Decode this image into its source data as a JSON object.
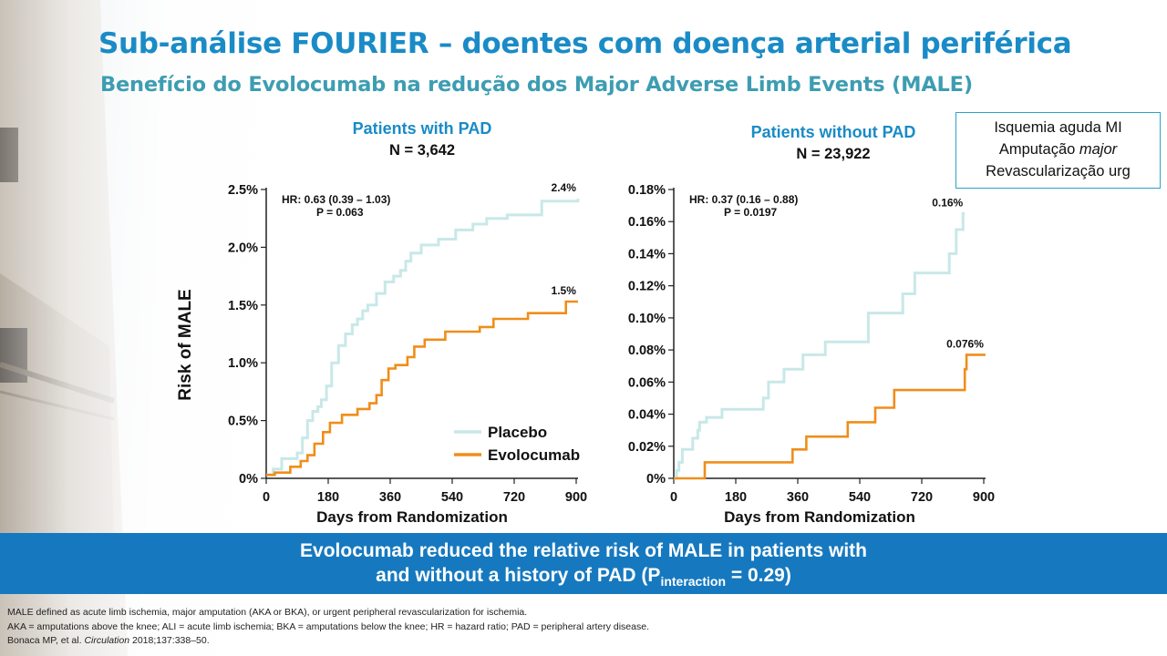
{
  "title": "Sub-análise FOURIER – doentes com doença arterial periférica",
  "subtitle": "Benefício do Evolocumab na redução dos Major Adverse Limb Events (MALE)",
  "box": {
    "line1": "Isquemia aguda MI",
    "line2_pre": "Amputação ",
    "line2_it": "major",
    "line3": "Revascularização urg"
  },
  "colors": {
    "placebo": "#c8e8e8",
    "evolocumab": "#ef8e1a",
    "title": "#1a8bc6",
    "banner": "#1679bf"
  },
  "banner": {
    "line1": "Evolocumab reduced the relative risk of MALE in patients with",
    "line2_pre": "and without a history of PAD (P",
    "line2_sub": "interaction",
    "line2_post": " = 0.29)"
  },
  "footnotes": {
    "line1": "MALE defined as acute limb ischemia, major amputation (AKA or BKA), or urgent peripheral revascularization for ischemia.",
    "line2": "AKA = amputations above the knee; ALI = acute limb ischemia; BKA = amputations below the knee; HR = hazard ratio; PAD = peripheral artery disease.",
    "line3_pre": "Bonaca MP, et al. ",
    "line3_it": "Circulation",
    "line3_post": " 2018;137:338–50."
  },
  "chart_data": [
    {
      "type": "line",
      "title": "Patients with PAD",
      "subtitle": "N = 3,642",
      "ylabel": "Risk of MALE",
      "xlabel": "Days from Randomization",
      "xlim": [
        0,
        900
      ],
      "ylim": [
        0,
        2.5
      ],
      "x_ticks": [
        "0",
        "180",
        "360",
        "540",
        "720",
        "900"
      ],
      "y_ticks": [
        "0%",
        "0.5%",
        "1.0%",
        "1.5%",
        "2.0%",
        "2.5%"
      ],
      "hr_line1": "HR: 0.63 (0.39 – 1.03)",
      "hr_line2": "P = 0.063",
      "legend": [
        "Placebo",
        "Evolocumab"
      ],
      "legend_position": "bottom-right",
      "end_labels": {
        "Placebo": "2.4%",
        "Evolocumab": "1.5%"
      },
      "series": [
        {
          "name": "Placebo",
          "points": [
            [
              0,
              0.03
            ],
            [
              20,
              0.08
            ],
            [
              45,
              0.17
            ],
            [
              90,
              0.22
            ],
            [
              105,
              0.35
            ],
            [
              120,
              0.5
            ],
            [
              135,
              0.58
            ],
            [
              150,
              0.62
            ],
            [
              160,
              0.68
            ],
            [
              175,
              0.8
            ],
            [
              190,
              1.0
            ],
            [
              210,
              1.15
            ],
            [
              230,
              1.25
            ],
            [
              250,
              1.33
            ],
            [
              265,
              1.38
            ],
            [
              280,
              1.45
            ],
            [
              295,
              1.5
            ],
            [
              320,
              1.6
            ],
            [
              345,
              1.7
            ],
            [
              370,
              1.75
            ],
            [
              390,
              1.8
            ],
            [
              405,
              1.88
            ],
            [
              420,
              1.95
            ],
            [
              450,
              2.02
            ],
            [
              500,
              2.07
            ],
            [
              550,
              2.15
            ],
            [
              600,
              2.2
            ],
            [
              640,
              2.25
            ],
            [
              700,
              2.28
            ],
            [
              800,
              2.4
            ],
            [
              905,
              2.42
            ]
          ]
        },
        {
          "name": "Evolocumab",
          "points": [
            [
              0,
              0.03
            ],
            [
              25,
              0.05
            ],
            [
              70,
              0.1
            ],
            [
              100,
              0.15
            ],
            [
              120,
              0.2
            ],
            [
              140,
              0.3
            ],
            [
              165,
              0.4
            ],
            [
              185,
              0.48
            ],
            [
              220,
              0.55
            ],
            [
              265,
              0.6
            ],
            [
              300,
              0.65
            ],
            [
              320,
              0.72
            ],
            [
              335,
              0.85
            ],
            [
              355,
              0.95
            ],
            [
              375,
              0.98
            ],
            [
              410,
              1.05
            ],
            [
              430,
              1.14
            ],
            [
              460,
              1.2
            ],
            [
              520,
              1.27
            ],
            [
              620,
              1.31
            ],
            [
              660,
              1.38
            ],
            [
              760,
              1.43
            ],
            [
              870,
              1.53
            ],
            [
              905,
              1.53
            ]
          ]
        }
      ]
    },
    {
      "type": "line",
      "title": "Patients without PAD",
      "subtitle": "N = 23,922",
      "xlabel": "Days from Randomization",
      "xlim": [
        0,
        900
      ],
      "ylim": [
        0,
        0.18
      ],
      "x_ticks": [
        "0",
        "180",
        "360",
        "540",
        "720",
        "900"
      ],
      "y_ticks": [
        "0%",
        "0.02%",
        "0.04%",
        "0.06%",
        "0.08%",
        "0.10%",
        "0.12%",
        "0.14%",
        "0.16%",
        "0.18%"
      ],
      "hr_line1": "HR: 0.37 (0.16 – 0.88)",
      "hr_line2": "P = 0.0197",
      "end_labels": {
        "Placebo": "0.16%",
        "Evolocumab": "0.076%"
      },
      "series": [
        {
          "name": "Placebo",
          "points": [
            [
              0,
              0.0
            ],
            [
              8,
              0.005
            ],
            [
              15,
              0.01
            ],
            [
              25,
              0.018
            ],
            [
              55,
              0.025
            ],
            [
              70,
              0.03
            ],
            [
              75,
              0.035
            ],
            [
              95,
              0.038
            ],
            [
              140,
              0.043
            ],
            [
              260,
              0.05
            ],
            [
              275,
              0.06
            ],
            [
              320,
              0.068
            ],
            [
              375,
              0.077
            ],
            [
              440,
              0.085
            ],
            [
              565,
              0.103
            ],
            [
              665,
              0.115
            ],
            [
              700,
              0.128
            ],
            [
              800,
              0.14
            ],
            [
              820,
              0.155
            ],
            [
              840,
              0.165
            ],
            [
              845,
              0.165
            ]
          ]
        },
        {
          "name": "Evolocumab",
          "points": [
            [
              0,
              0.0
            ],
            [
              90,
              0.01
            ],
            [
              345,
              0.018
            ],
            [
              385,
              0.026
            ],
            [
              505,
              0.035
            ],
            [
              585,
              0.044
            ],
            [
              640,
              0.055
            ],
            [
              845,
              0.068
            ],
            [
              850,
              0.077
            ],
            [
              905,
              0.077
            ]
          ]
        }
      ]
    }
  ]
}
